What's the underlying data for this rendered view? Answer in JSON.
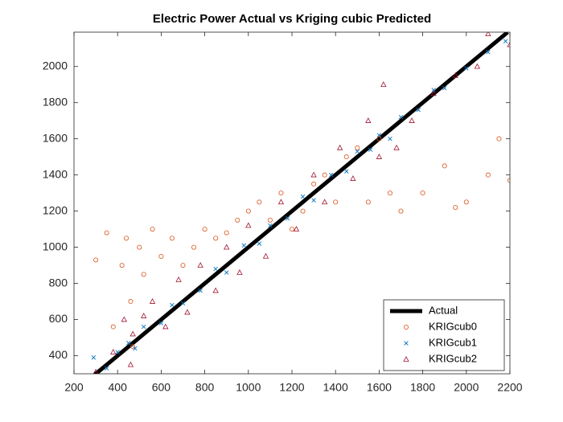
{
  "chart_data": {
    "type": "scatter",
    "title": "Electric Power Actual vs Kriging cubic Predicted",
    "xlim": [
      200,
      2200
    ],
    "ylim": [
      300,
      2190
    ],
    "xticks": [
      200,
      400,
      600,
      800,
      1000,
      1200,
      1400,
      1600,
      1800,
      2000,
      2200
    ],
    "yticks": [
      400,
      600,
      800,
      1000,
      1200,
      1400,
      1600,
      1800,
      2000
    ],
    "grid": false,
    "legend": "southeast",
    "series": [
      {
        "name": "Actual",
        "color": "#000000",
        "style": "line",
        "x": [
          285,
          2190
        ],
        "values": [
          285,
          2190
        ]
      },
      {
        "name": "KRIGcub0",
        "color": "#d95319",
        "marker": "circle",
        "x": [
          300,
          350,
          380,
          420,
          440,
          460,
          470,
          500,
          520,
          560,
          600,
          650,
          700,
          750,
          800,
          850,
          900,
          950,
          1000,
          1050,
          1100,
          1150,
          1200,
          1250,
          1300,
          1350,
          1400,
          1450,
          1500,
          1550,
          1600,
          1650,
          1700,
          1800,
          1900,
          2000,
          2100,
          2200,
          2150,
          1950
        ],
        "values": [
          930,
          1080,
          560,
          900,
          1050,
          700,
          450,
          1000,
          850,
          1100,
          950,
          1050,
          900,
          1000,
          1100,
          1050,
          1080,
          1150,
          1200,
          1250,
          1150,
          1300,
          1100,
          1200,
          1350,
          1400,
          1250,
          1500,
          1550,
          1250,
          1600,
          1300,
          1200,
          1300,
          1450,
          1250,
          1400,
          1370,
          1600,
          1220
        ]
      },
      {
        "name": "KRIGcub1",
        "color": "#0072bd",
        "marker": "x",
        "x": [
          290,
          350,
          400,
          450,
          480,
          520,
          600,
          650,
          700,
          780,
          850,
          900,
          980,
          1050,
          1100,
          1180,
          1250,
          1300,
          1380,
          1450,
          1500,
          1560,
          1600,
          1650,
          1700,
          1780,
          1850,
          1900,
          2000,
          2100,
          2180
        ],
        "values": [
          390,
          330,
          420,
          470,
          440,
          560,
          580,
          680,
          690,
          760,
          880,
          860,
          1010,
          1020,
          1120,
          1160,
          1280,
          1260,
          1400,
          1420,
          1530,
          1540,
          1620,
          1600,
          1720,
          1760,
          1870,
          1880,
          1990,
          2080,
          2140
        ]
      },
      {
        "name": "KRIGcub2",
        "color": "#a2142f",
        "marker": "triangle",
        "x": [
          300,
          380,
          430,
          460,
          470,
          520,
          560,
          620,
          680,
          720,
          780,
          850,
          900,
          960,
          1000,
          1080,
          1150,
          1220,
          1300,
          1350,
          1420,
          1480,
          1550,
          1600,
          1620,
          1680,
          1750,
          1850,
          1950,
          2050,
          2100,
          2200
        ],
        "values": [
          310,
          420,
          600,
          350,
          520,
          620,
          700,
          560,
          820,
          640,
          900,
          760,
          1000,
          860,
          1120,
          950,
          1250,
          1100,
          1400,
          1250,
          1550,
          1380,
          1700,
          1500,
          1900,
          1550,
          1700,
          1850,
          1950,
          2000,
          2180,
          2120
        ]
      }
    ]
  }
}
